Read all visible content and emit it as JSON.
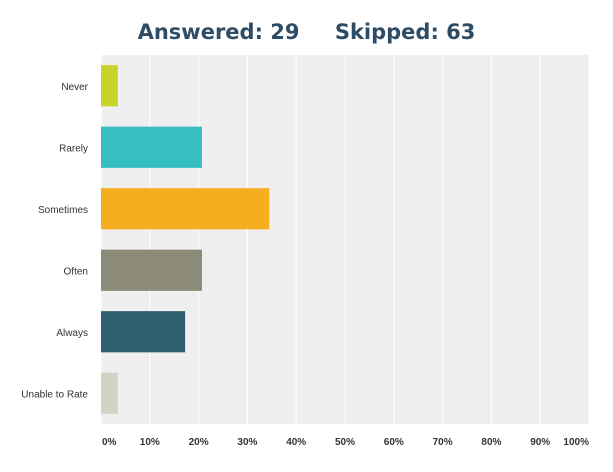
{
  "summary": {
    "answered": "Answered: 29",
    "skipped": "Skipped: 63"
  },
  "chart_data": {
    "type": "bar",
    "orientation": "horizontal",
    "title": "",
    "xlabel": "",
    "ylabel": "",
    "xlim": [
      0,
      100
    ],
    "categories": [
      "Never",
      "Rarely",
      "Sometimes",
      "Often",
      "Always",
      "Unable to Rate"
    ],
    "values": [
      3.45,
      20.69,
      34.48,
      20.69,
      17.24,
      3.45
    ],
    "colors": [
      "#c8d42b",
      "#35bfc1",
      "#f5ae20",
      "#8b8b78",
      "#2d5f6e",
      "#d4d2c4"
    ],
    "tick_labels": [
      "0%",
      "10%",
      "20%",
      "30%",
      "40%",
      "50%",
      "60%",
      "70%",
      "80%",
      "90%",
      "100%"
    ],
    "grid": true
  }
}
